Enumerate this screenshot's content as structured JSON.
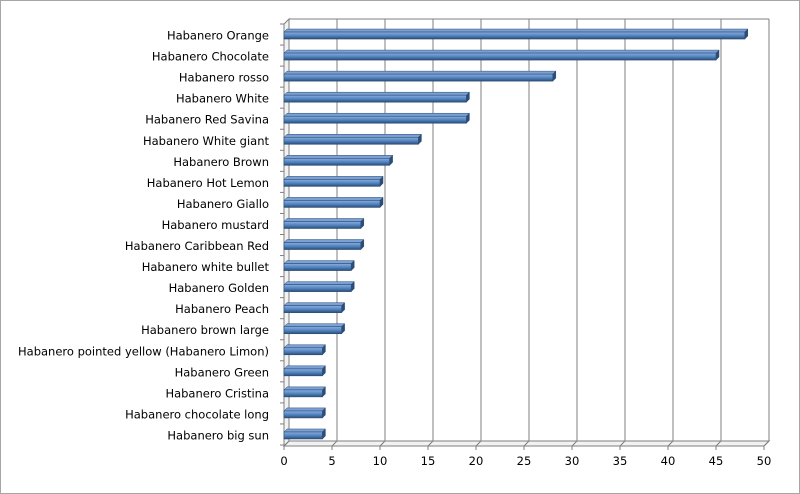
{
  "chart_data": {
    "type": "bar",
    "orientation": "horizontal",
    "title": "",
    "xlabel": "",
    "ylabel": "",
    "xlim": [
      0,
      50
    ],
    "x_ticks": [
      "0",
      "5",
      "10",
      "15",
      "20",
      "25",
      "30",
      "35",
      "40",
      "45",
      "50"
    ],
    "grid": "vertical major gridlines",
    "legend": "none",
    "bar_style": "3D cylinder-like bars with depth",
    "categories": [
      "Habanero Orange",
      "Habanero Chocolate",
      "Habanero rosso",
      "Habanero White",
      "Habanero Red Savina",
      "Habanero White giant",
      "Habanero Brown",
      "Habanero Hot Lemon",
      "Habanero Giallo",
      "Habanero mustard",
      "Habanero Caribbean Red",
      "Habanero white bullet",
      "Habanero Golden",
      "Habanero Peach",
      "Habanero brown large",
      "Habanero pointed yellow (Habanero Limon)",
      "Habanero Green",
      "Habanero Cristina",
      "Habanero chocolate long",
      "Habanero big sun"
    ],
    "values": [
      48,
      45,
      28,
      19,
      19,
      14,
      11,
      10,
      10,
      8,
      8,
      7,
      7,
      6,
      6,
      4,
      4,
      4,
      4,
      4
    ],
    "colors": {
      "bar_main": "#4f81bd",
      "bar_top": "#7ba0d4",
      "bar_dark": "#2c4d75",
      "grid": "#7f7f7f",
      "axis": "#7f7f7f",
      "frame": "#a6a6a6"
    }
  }
}
